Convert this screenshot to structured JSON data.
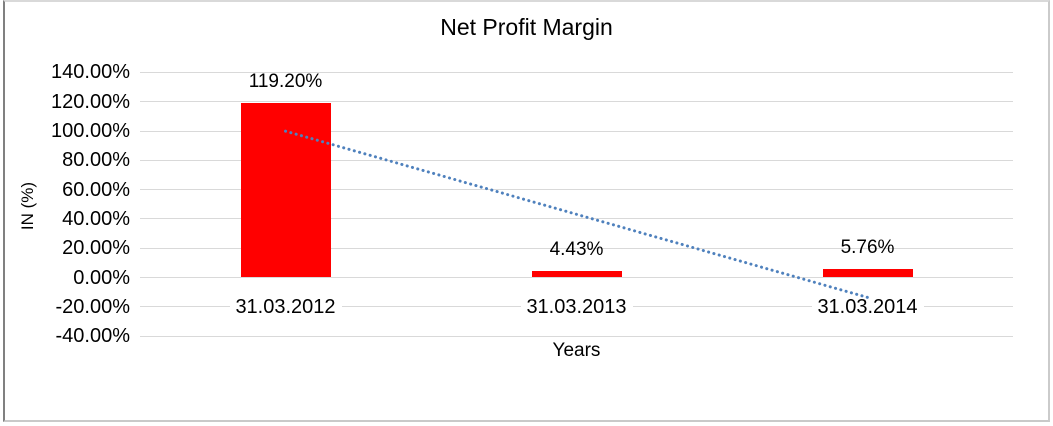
{
  "chart_data": {
    "type": "bar",
    "title": "Net Profit Margin",
    "xlabel": "Years",
    "ylabel": "IN (%)",
    "categories": [
      "31.03.2012",
      "31.03.2013",
      "31.03.2014"
    ],
    "values": [
      119.2,
      4.43,
      5.76
    ],
    "data_labels": [
      "119.20%",
      "4.43%",
      "5.76%"
    ],
    "y_tick_labels": [
      "140.00%",
      "120.00%",
      "100.00%",
      "80.00%",
      "60.00%",
      "40.00%",
      "20.00%",
      "0.00%",
      "-20.00%",
      "-40.00%"
    ],
    "y_tick_values": [
      140,
      120,
      100,
      80,
      60,
      40,
      20,
      0,
      -20,
      -40
    ],
    "ylim": [
      -40,
      140
    ],
    "grid": true,
    "legend": false,
    "bar_color": "#ff0000",
    "gridline_color": "#d9d9d9",
    "trendline": {
      "style": "dotted",
      "color": "#4f81bd",
      "start_value": 99.9,
      "end_value": -13.6
    }
  }
}
